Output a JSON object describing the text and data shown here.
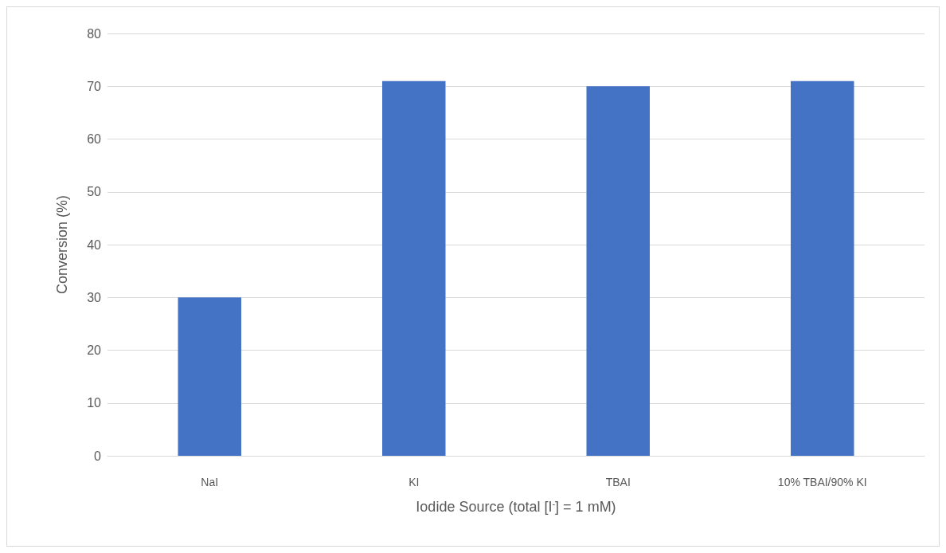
{
  "chart_data": {
    "type": "bar",
    "xlabel": "Iodide Source (total [I$^{-}$] = 1 mM)",
    "ylabel": "Conversion (%)",
    "categories": [
      "NaI",
      "KI",
      "TBAI",
      "10% TBAI/90% KI"
    ],
    "values": [
      30,
      71,
      70,
      71
    ],
    "color": "#4472c4",
    "ylim": [
      0,
      80
    ],
    "yticks": [
      0,
      10,
      20,
      30,
      40,
      50,
      60,
      70,
      80
    ],
    "grid": "y"
  }
}
